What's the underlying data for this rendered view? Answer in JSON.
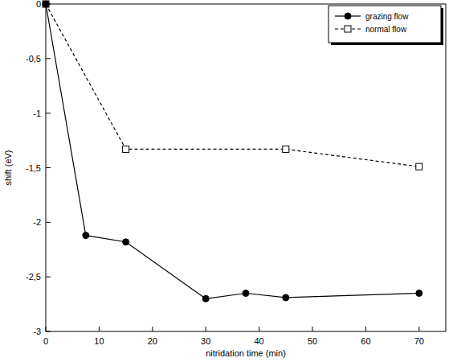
{
  "chart_data": {
    "type": "line",
    "x_label": "nitridation time (min)",
    "y_label": "shift (eV)",
    "xlim": [
      0,
      75
    ],
    "xticks": [
      0,
      10,
      20,
      30,
      40,
      50,
      60,
      70
    ],
    "ylim": [
      -3,
      0
    ],
    "yticks": [
      0,
      {
        "value": -0.5,
        "label": "-0,5"
      },
      -1,
      {
        "value": -1.5,
        "label": "-1,5"
      },
      -2,
      {
        "value": -2.5,
        "label": "-2,5"
      },
      -3
    ],
    "grid": false,
    "legend": "upper right",
    "series": [
      {
        "name": "grazing flow",
        "color": "#000000",
        "marker": "circle",
        "line_style": "solid",
        "x": [
          0,
          7.5,
          15,
          30,
          37.5,
          45,
          70
        ],
        "values": [
          0,
          -2.12,
          -2.18,
          -2.7,
          -2.65,
          -2.69,
          -2.65
        ]
      },
      {
        "name": "normal flow",
        "color": "#000000",
        "marker": "square",
        "line_style": "dashed",
        "x": [
          0,
          15,
          45,
          70
        ],
        "values": [
          0,
          -1.33,
          -1.33,
          -1.49
        ]
      }
    ]
  }
}
